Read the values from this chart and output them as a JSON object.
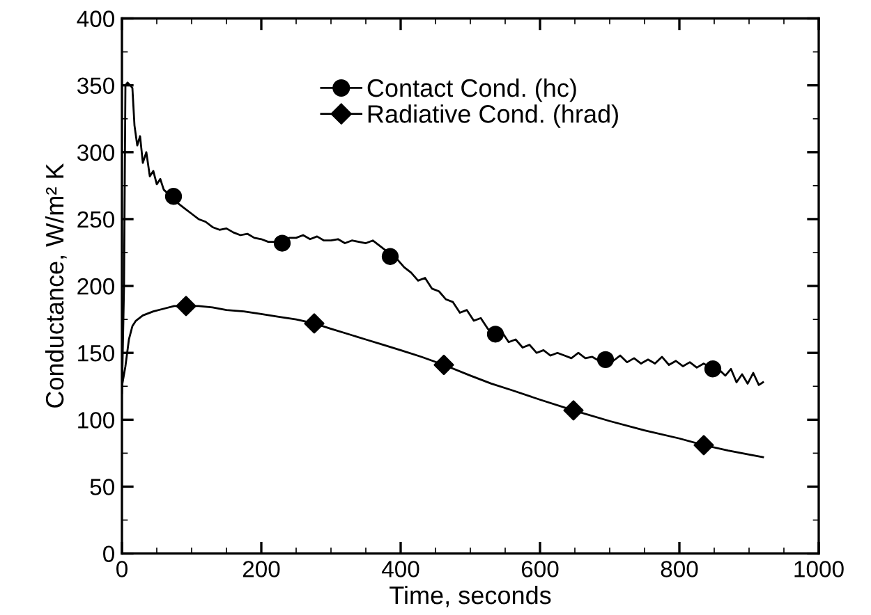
{
  "chart_data": {
    "type": "line",
    "xlabel": "Time, seconds",
    "ylabel": "Conductance, W/m² K",
    "xlim": [
      0,
      1000
    ],
    "ylim": [
      0,
      400
    ],
    "xticks": [
      0,
      200,
      400,
      600,
      800,
      1000
    ],
    "yticks": [
      0,
      50,
      100,
      150,
      200,
      250,
      300,
      350,
      400
    ],
    "grid": false,
    "legend": "top",
    "series": [
      {
        "name": "Contact Cond. (hc)",
        "color": "#000000",
        "x": [
          0,
          3,
          5,
          8,
          12,
          15,
          18,
          22,
          26,
          30,
          35,
          40,
          45,
          50,
          55,
          60,
          68,
          74,
          80,
          90,
          100,
          110,
          120,
          130,
          140,
          150,
          160,
          170,
          180,
          190,
          200,
          210,
          220,
          230,
          240,
          250,
          260,
          270,
          280,
          290,
          300,
          310,
          320,
          330,
          340,
          350,
          360,
          370,
          380,
          385,
          395,
          405,
          415,
          425,
          435,
          445,
          455,
          465,
          475,
          485,
          495,
          505,
          515,
          525,
          536,
          545,
          555,
          565,
          575,
          585,
          595,
          605,
          615,
          625,
          635,
          645,
          655,
          665,
          675,
          685,
          694,
          705,
          715,
          725,
          735,
          745,
          755,
          765,
          775,
          785,
          795,
          805,
          815,
          825,
          835,
          848,
          858,
          866,
          874,
          882,
          890,
          898,
          906,
          914,
          920
        ],
        "values": [
          120,
          200,
          350,
          352,
          350,
          348,
          320,
          305,
          312,
          292,
          300,
          282,
          286,
          276,
          280,
          272,
          268,
          267,
          262,
          258,
          254,
          250,
          248,
          244,
          242,
          243,
          240,
          238,
          239,
          236,
          235,
          233,
          233,
          232,
          236,
          236,
          238,
          235,
          237,
          234,
          234,
          235,
          232,
          234,
          233,
          232,
          234,
          230,
          226,
          222,
          220,
          214,
          210,
          204,
          206,
          198,
          196,
          190,
          188,
          180,
          182,
          174,
          176,
          168,
          164,
          166,
          158,
          160,
          154,
          156,
          150,
          152,
          148,
          150,
          148,
          146,
          150,
          146,
          147,
          144,
          145,
          144,
          148,
          143,
          146,
          142,
          145,
          142,
          147,
          141,
          144,
          140,
          143,
          139,
          142,
          138,
          137,
          133,
          138,
          128,
          134,
          127,
          135,
          126,
          128
        ]
      },
      {
        "type": "scatter",
        "marker": "circle",
        "color": "#000000",
        "x": [
          74,
          230,
          385,
          536,
          694,
          848
        ],
        "values": [
          267,
          232,
          222,
          164,
          145,
          138
        ]
      },
      {
        "name": "Radiative Cond. (hrad)",
        "color": "#000000",
        "x": [
          0,
          5,
          10,
          15,
          20,
          30,
          45,
          60,
          75,
          92,
          110,
          130,
          150,
          175,
          200,
          225,
          250,
          276,
          300,
          325,
          350,
          375,
          400,
          430,
          462,
          500,
          530,
          560,
          600,
          648,
          700,
          750,
          800,
          835,
          870,
          900,
          920
        ],
        "values": [
          125,
          140,
          160,
          170,
          174,
          178,
          181,
          183,
          185,
          185,
          185,
          184,
          182,
          181,
          179,
          177,
          175,
          172,
          168,
          164,
          160,
          156,
          152,
          147,
          141,
          133,
          127,
          122,
          115,
          107,
          99,
          92,
          86,
          81,
          77,
          74,
          72
        ]
      },
      {
        "type": "scatter",
        "marker": "diamond",
        "color": "#000000",
        "x": [
          92,
          276,
          462,
          648,
          835
        ],
        "values": [
          185,
          172,
          141,
          107,
          81
        ]
      }
    ]
  }
}
